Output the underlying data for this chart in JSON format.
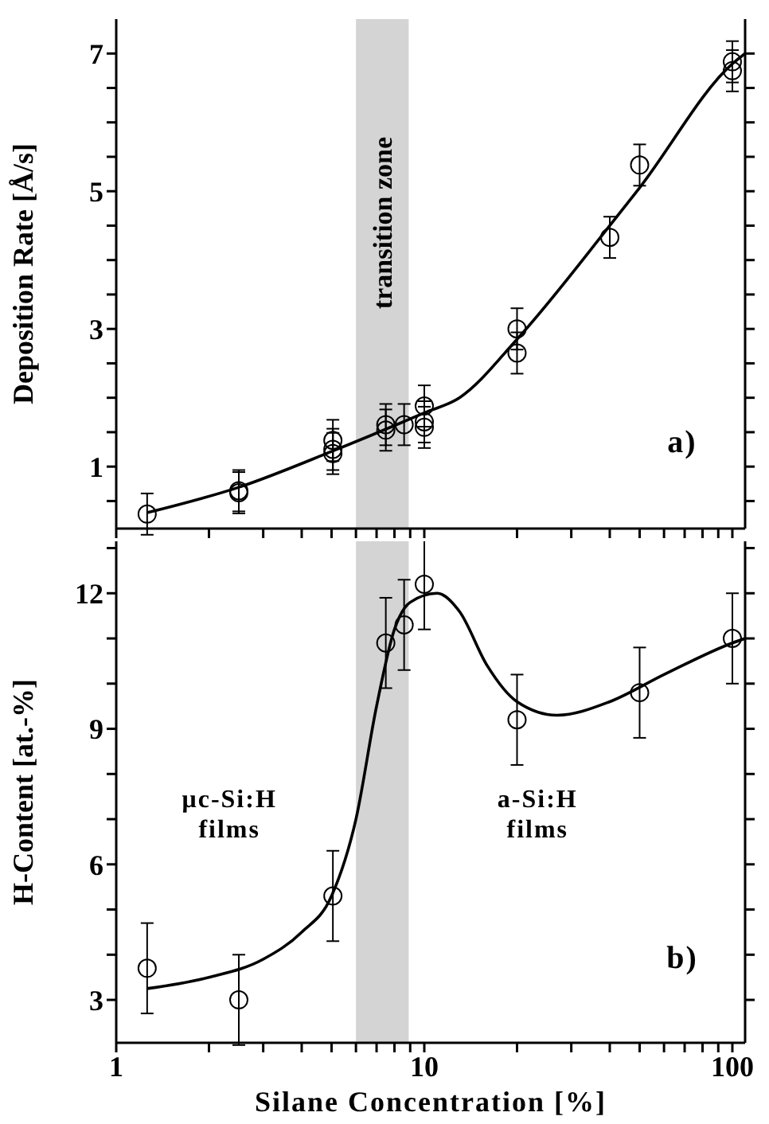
{
  "chart_data": [
    {
      "type": "scatter",
      "ylabel": "Deposition Rate [Å/s]",
      "log": "x",
      "tick_labels": "y",
      "xlim": [
        1,
        110
      ],
      "xticks": [
        1,
        {
          "value": 2,
          "label": null
        },
        {
          "value": 3,
          "label": null
        },
        {
          "value": 4,
          "label": null
        },
        {
          "value": 5,
          "label": null
        },
        {
          "value": 6,
          "label": null
        },
        {
          "value": 7,
          "label": null
        },
        {
          "value": 8,
          "label": null
        },
        {
          "value": 9,
          "label": null
        },
        10,
        {
          "value": 20,
          "label": null
        },
        {
          "value": 30,
          "label": null
        },
        {
          "value": 40,
          "label": null
        },
        {
          "value": 50,
          "label": null
        },
        {
          "value": 60,
          "label": null
        },
        {
          "value": 70,
          "label": null
        },
        {
          "value": 80,
          "label": null
        },
        {
          "value": 90,
          "label": null
        },
        100
      ],
      "ylim": [
        0.1,
        7.5
      ],
      "yticks": [
        {
          "value": 0.5,
          "label": null
        },
        1,
        {
          "value": 1.5,
          "label": null
        },
        {
          "value": 2,
          "label": null
        },
        {
          "value": 2.5,
          "label": null
        },
        3,
        {
          "value": 3.5,
          "label": null
        },
        {
          "value": 4,
          "label": null
        },
        {
          "value": 4.5,
          "label": null
        },
        5,
        {
          "value": 5.5,
          "label": null
        },
        {
          "value": 6,
          "label": null
        },
        {
          "value": 6.5,
          "label": null
        },
        7
      ],
      "series": [
        {
          "marker": "circle",
          "color": "#000000",
          "x": [
            1.26,
            2.5,
            2.5,
            5.05,
            5.05,
            5.05,
            7.5,
            7.5,
            8.6,
            10,
            10,
            10,
            20,
            20,
            40,
            50,
            100,
            100
          ],
          "values": [
            0.31,
            0.62,
            0.65,
            1.38,
            1.25,
            1.19,
            1.61,
            1.53,
            1.61,
            1.88,
            1.65,
            1.57,
            3.0,
            2.65,
            4.33,
            5.38,
            6.88,
            6.75
          ],
          "errors": [
            0.3,
            0.3,
            0.3,
            0.3,
            0.3,
            0.3,
            0.3,
            0.3,
            0.3,
            0.3,
            0.3,
            0.3,
            0.3,
            0.3,
            0.3,
            0.3,
            0.3,
            0.3
          ]
        },
        {
          "type": "line",
          "color": "#000000",
          "x": [
            1.26,
            2.5,
            5,
            10,
            13,
            20,
            40,
            50,
            100,
            110
          ],
          "values": [
            0.33,
            0.7,
            1.22,
            1.78,
            2.0,
            2.85,
            4.5,
            5.05,
            6.85,
            7.0
          ]
        }
      ],
      "bands": [
        {
          "axis": "x",
          "from": 6,
          "to": 8.9,
          "label": "transition zone",
          "color": "#d4d4d4"
        }
      ],
      "annotations": [
        "a)"
      ]
    },
    {
      "type": "scatter",
      "ylabel": "H-Content [at.-%]",
      "xlabel": "Silane Concentration [%]",
      "log": "x",
      "xlim": [
        1,
        110
      ],
      "xticks": [
        1,
        {
          "value": 2,
          "label": null
        },
        {
          "value": 3,
          "label": null
        },
        {
          "value": 4,
          "label": null
        },
        {
          "value": 5,
          "label": null
        },
        {
          "value": 6,
          "label": null
        },
        {
          "value": 7,
          "label": null
        },
        {
          "value": 8,
          "label": null
        },
        {
          "value": 9,
          "label": null
        },
        10,
        {
          "value": 20,
          "label": null
        },
        {
          "value": 30,
          "label": null
        },
        {
          "value": 40,
          "label": null
        },
        {
          "value": 50,
          "label": null
        },
        {
          "value": 60,
          "label": null
        },
        {
          "value": 70,
          "label": null
        },
        {
          "value": 80,
          "label": null
        },
        {
          "value": 90,
          "label": null
        },
        100
      ],
      "ylim": [
        2.05,
        13.15
      ],
      "yticks": [
        3,
        {
          "value": 4,
          "label": null
        },
        {
          "value": 5,
          "label": null
        },
        6,
        {
          "value": 7,
          "label": null
        },
        {
          "value": 8,
          "label": null
        },
        9,
        {
          "value": 10,
          "label": null
        },
        {
          "value": 11,
          "label": null
        },
        12,
        {
          "value": 13,
          "label": null
        }
      ],
      "series": [
        {
          "marker": "circle",
          "color": "#000000",
          "x": [
            1.26,
            2.5,
            5.05,
            7.5,
            8.6,
            10,
            20,
            50,
            100
          ],
          "values": [
            3.7,
            3.0,
            5.3,
            10.9,
            11.3,
            12.2,
            9.2,
            9.8,
            11.0
          ],
          "errors": [
            1,
            1,
            1,
            1,
            1,
            1,
            1,
            1,
            1
          ]
        },
        {
          "type": "line",
          "color": "#000000",
          "x": [
            1.26,
            2,
            3,
            4,
            5,
            6,
            7,
            8,
            9,
            11,
            13,
            16,
            20,
            27,
            40,
            60,
            100,
            110
          ],
          "values": [
            3.25,
            3.5,
            3.9,
            4.5,
            5.3,
            7.0,
            9.5,
            11.2,
            11.8,
            12.0,
            11.6,
            10.4,
            9.6,
            9.3,
            9.6,
            10.2,
            10.9,
            11.0
          ]
        }
      ],
      "bands": [
        {
          "axis": "x",
          "from": 6,
          "to": 8.9,
          "color": "#d4d4d4"
        }
      ],
      "annotations": [
        "μc-Si:H films",
        "a-Si:H films",
        "b)"
      ]
    }
  ]
}
